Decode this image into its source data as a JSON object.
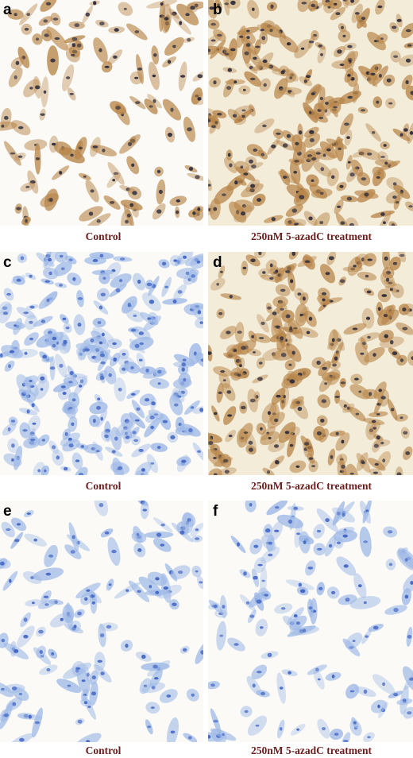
{
  "panels": [
    {
      "letter": "a",
      "caption": "Control",
      "stain": "brown",
      "density": "sparse"
    },
    {
      "letter": "b",
      "caption": "250nM 5-azadC treatment",
      "stain": "brown",
      "density": "dense"
    },
    {
      "letter": "c",
      "caption": "Control",
      "stain": "blue",
      "density": "dense"
    },
    {
      "letter": "d",
      "caption": "250nM 5-azadC treatment",
      "stain": "brown",
      "density": "dense"
    },
    {
      "letter": "e",
      "caption": "Control",
      "stain": "blue",
      "density": "sparse"
    },
    {
      "letter": "f",
      "caption": "250nM 5-azadC treatment",
      "stain": "blue",
      "density": "sparse"
    }
  ],
  "colors": {
    "caption": "#6b1e1e",
    "brown_cytoplasm": "#b8864a",
    "brown_nucleus": "#2b2a3a",
    "blue_cytoplasm": "#9db8e6",
    "blue_nucleus": "#3f63c4",
    "background": "#fbfaf6"
  }
}
